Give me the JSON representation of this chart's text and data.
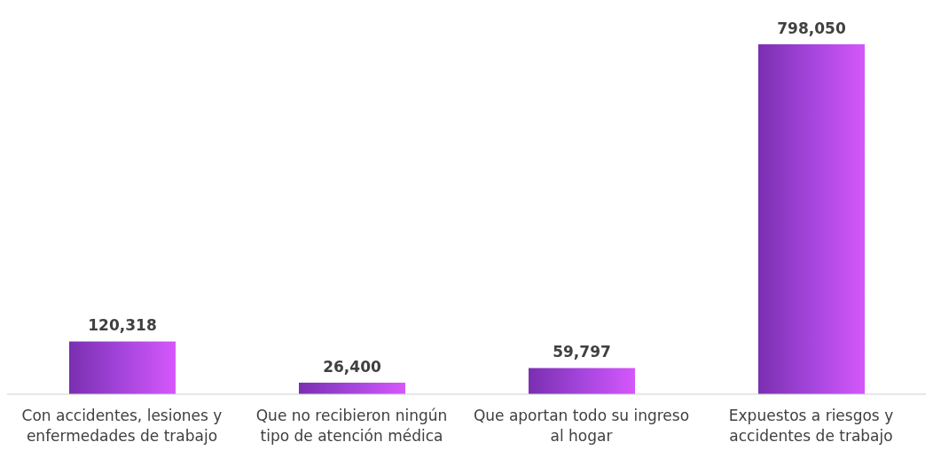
{
  "chart_data": {
    "type": "bar",
    "categories": [
      "Con accidentes, lesiones y enfermedades de trabajo",
      "Que no recibieron ningún tipo de atención médica",
      "Que aportan todo su ingreso al hogar",
      "Expuestos a riesgos y accidentes de trabajo"
    ],
    "values": [
      120318,
      26400,
      59797,
      798050
    ],
    "color": "#a545dc",
    "value_labels": [
      "120,318",
      "26,400",
      "59,797",
      "798,050"
    ],
    "grid": false,
    "legend": false
  }
}
